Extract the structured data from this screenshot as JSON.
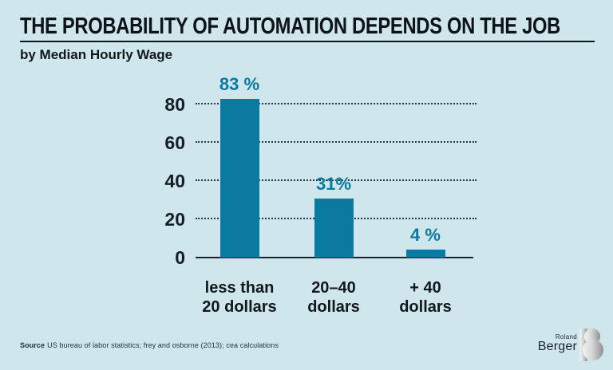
{
  "page": {
    "title": "THE PROBABILITY OF AUTOMATION DEPENDS ON THE JOB",
    "subtitle": "by Median Hourly Wage",
    "source_label": "Source",
    "source_text": "US bureau of labor statistics; frey and osborne (2013); cea calculations"
  },
  "chart_data": {
    "type": "bar",
    "title": "THE PROBABILITY OF AUTOMATION DEPENDS ON THE JOB",
    "subtitle": "by Median Hourly Wage",
    "categories": [
      [
        "less than",
        "20 dollars"
      ],
      [
        "20–40",
        "dollars"
      ],
      [
        "+ 40",
        "dollars"
      ]
    ],
    "values": [
      83,
      31,
      4
    ],
    "value_labels": [
      "83 %",
      "31%",
      "4 %"
    ],
    "y_ticks": [
      0,
      20,
      40,
      60,
      80
    ],
    "ylim": [
      0,
      90
    ],
    "xlabel": "",
    "ylabel": "",
    "grid": "horizontal-dotted",
    "legend": "none",
    "bar_color": "#0a7aa0",
    "value_label_color": "#0a7aa0"
  },
  "branding": {
    "name_top": "Roland",
    "name_bottom": "Berger",
    "mark": "roland-berger-b-icon"
  },
  "colors": {
    "background": "#cee6ec",
    "bar": "#0a7aa0",
    "text": "#121a1e",
    "grid": "#223640"
  }
}
